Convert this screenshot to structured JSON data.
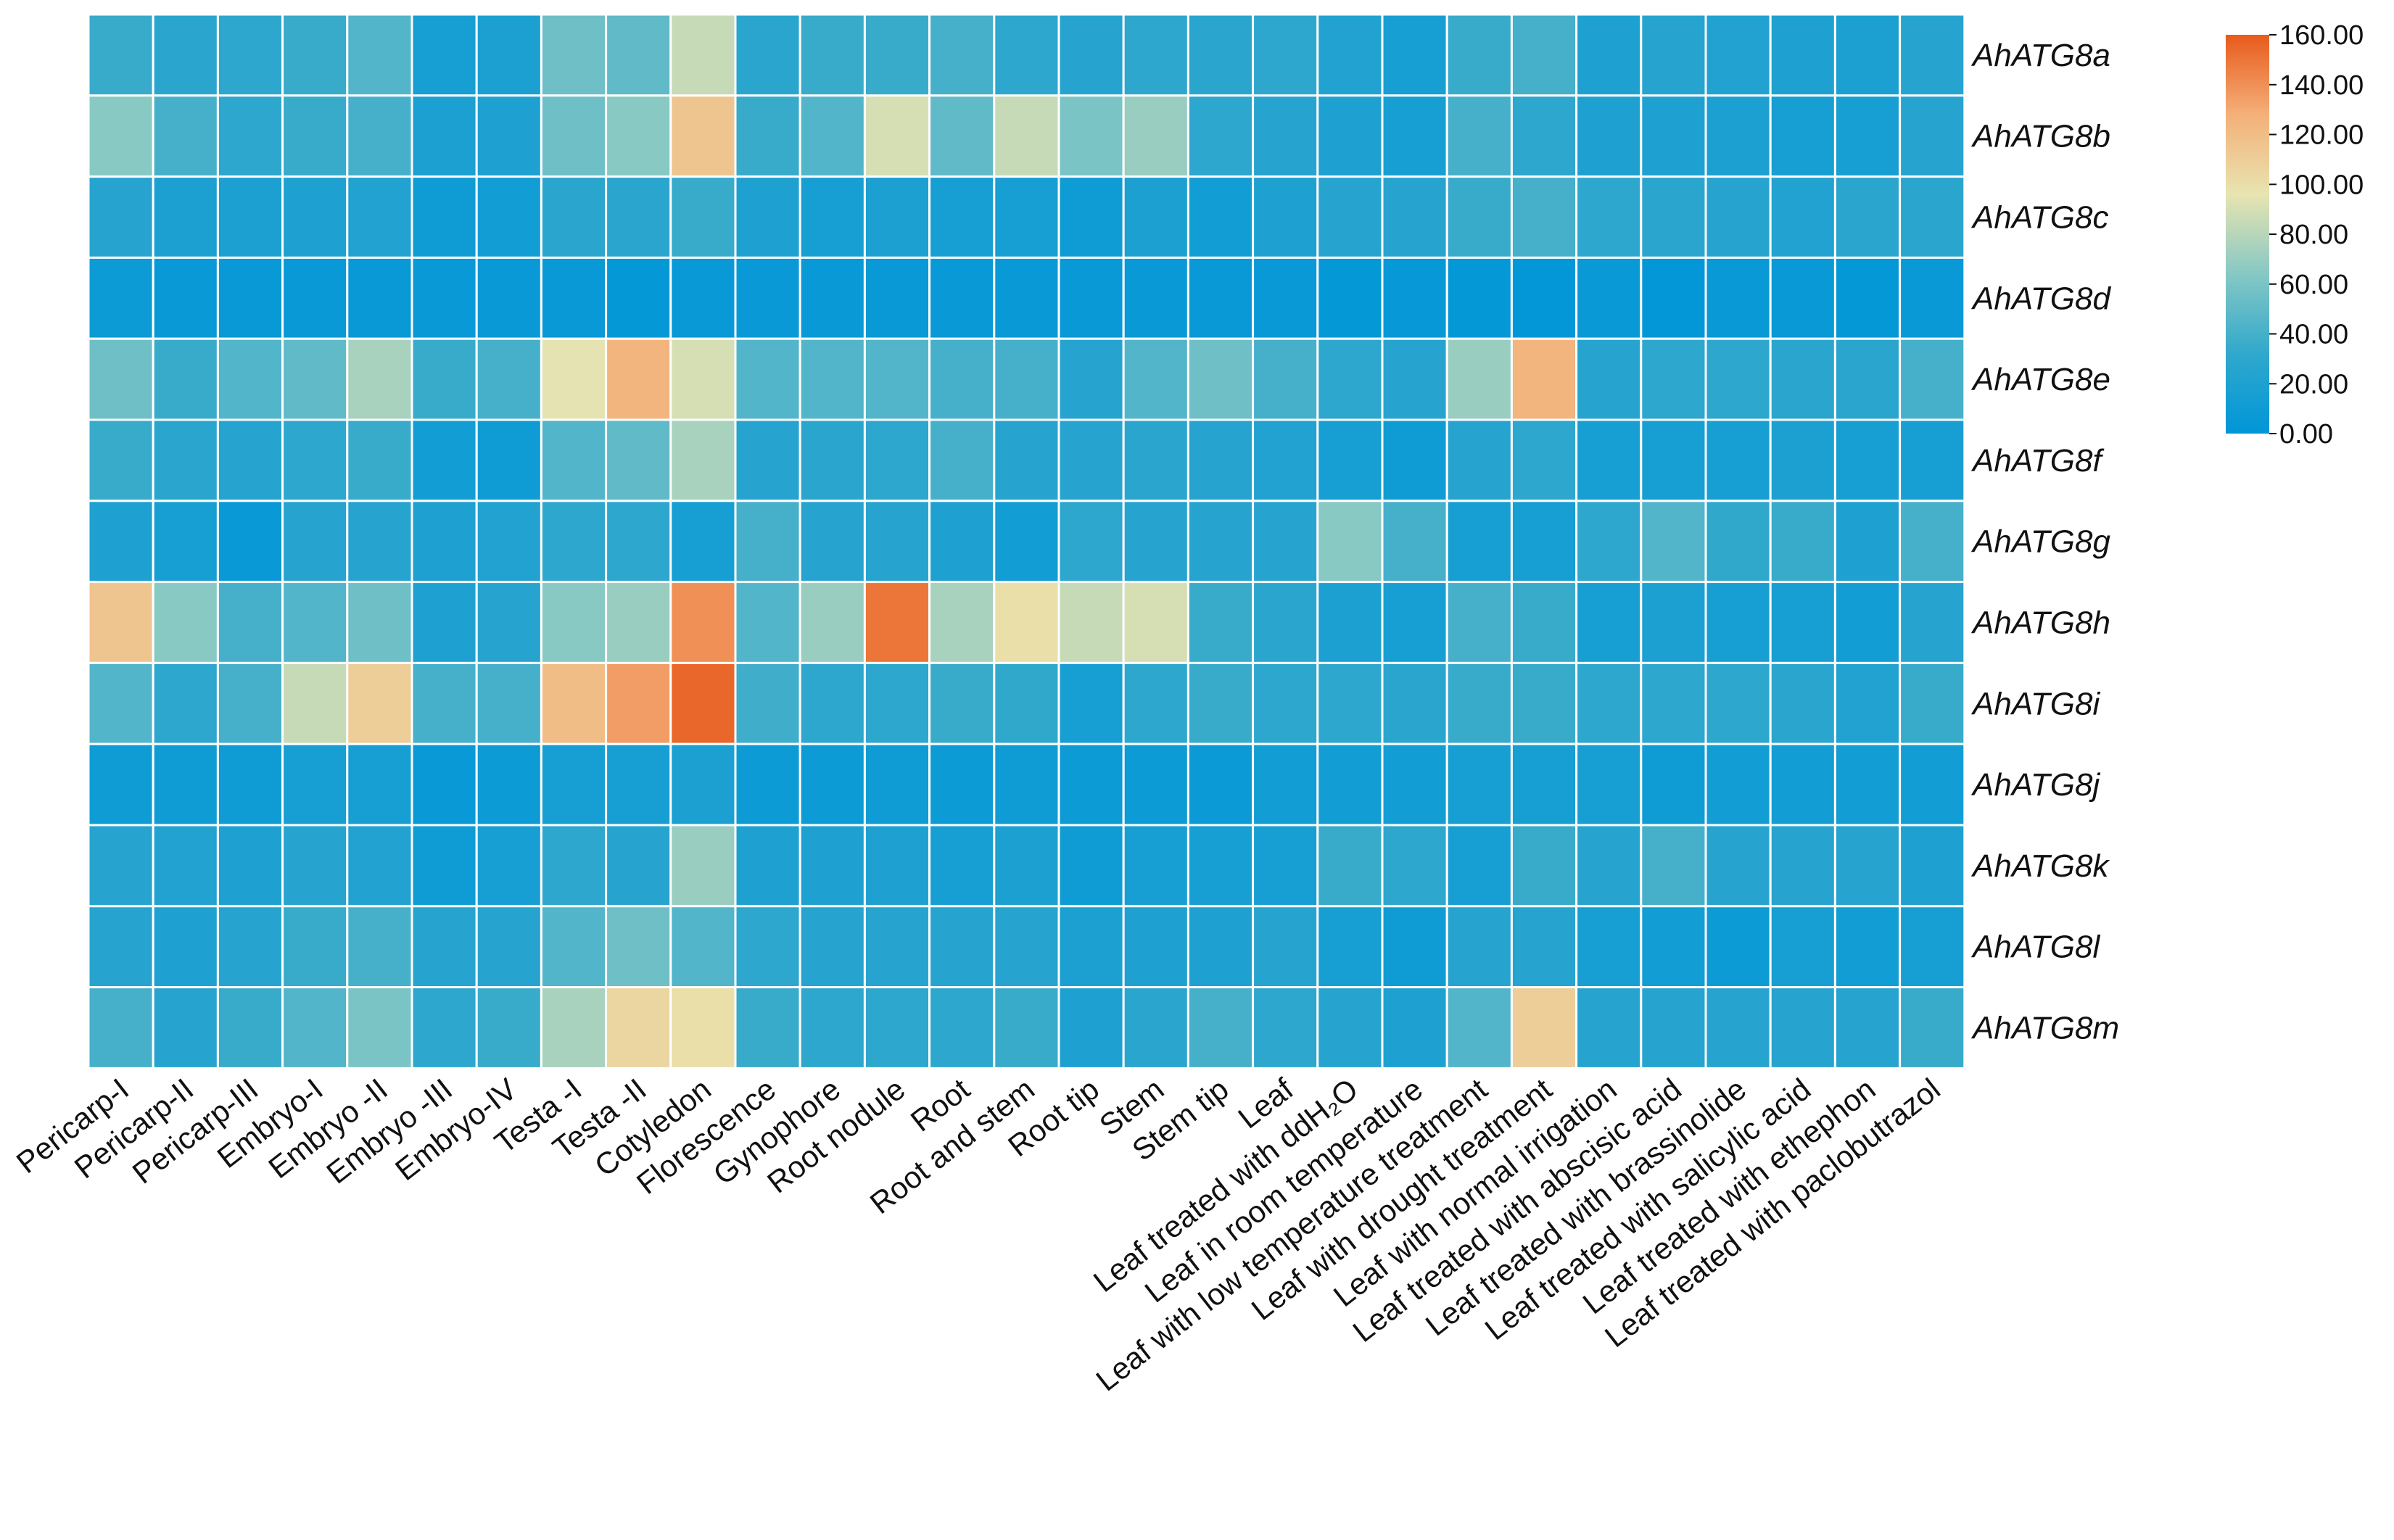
{
  "chart_data": {
    "type": "heatmap",
    "title": "",
    "rows": [
      "AhATG8a",
      "AhATG8b",
      "AhATG8c",
      "AhATG8d",
      "AhATG8e",
      "AhATG8f",
      "AhATG8g",
      "AhATG8h",
      "AhATG8i",
      "AhATG8j",
      "AhATG8k",
      "AhATG8l",
      "AhATG8m"
    ],
    "columns": [
      "Pericarp-I",
      "Pericarp-II",
      "Pericarp-III",
      "Embryo-I",
      "Embryo -II",
      "Embryo -III",
      "Embryo-IV",
      "Testa -I",
      "Testa -II",
      "Cotyledon",
      "Florescence",
      "Gynophore",
      "Root nodule",
      "Root",
      "Root and stem",
      "Root tip",
      "Stem",
      "Stem tip",
      "Leaf",
      "Leaf treated with ddH₂O",
      "Leaf in room temperature",
      "Leaf with low temperature treatment",
      "Leaf with drought treatment",
      "Leaf with normal irrigation",
      "Leaf treated with abscisic acid",
      "Leaf treated with brassinolide",
      "Leaf treated with salicylic acid",
      "Leaf treated with ethephon",
      "Leaf treated with paclobutrazol"
    ],
    "values": [
      [
        35,
        28,
        30,
        35,
        45,
        15,
        18,
        55,
        50,
        85,
        28,
        35,
        35,
        40,
        30,
        25,
        30,
        28,
        30,
        22,
        15,
        35,
        40,
        20,
        25,
        22,
        20,
        18,
        25
      ],
      [
        65,
        40,
        30,
        35,
        40,
        18,
        20,
        55,
        65,
        115,
        35,
        45,
        90,
        50,
        85,
        60,
        70,
        30,
        25,
        20,
        15,
        40,
        30,
        20,
        20,
        18,
        15,
        15,
        25
      ],
      [
        25,
        18,
        18,
        20,
        22,
        10,
        12,
        28,
        28,
        35,
        20,
        15,
        18,
        15,
        15,
        10,
        18,
        12,
        20,
        25,
        25,
        35,
        40,
        30,
        28,
        25,
        22,
        28,
        28
      ],
      [
        8,
        6,
        5,
        6,
        5,
        6,
        6,
        5,
        3,
        5,
        6,
        6,
        6,
        5,
        5,
        5,
        6,
        6,
        6,
        3,
        4,
        3,
        2,
        6,
        2,
        5,
        5,
        3,
        5
      ],
      [
        55,
        35,
        45,
        50,
        75,
        35,
        40,
        95,
        125,
        90,
        45,
        45,
        45,
        40,
        40,
        25,
        45,
        55,
        40,
        30,
        25,
        70,
        125,
        25,
        30,
        30,
        28,
        28,
        40
      ],
      [
        35,
        28,
        25,
        30,
        35,
        12,
        10,
        45,
        50,
        75,
        25,
        28,
        30,
        40,
        25,
        25,
        28,
        25,
        22,
        15,
        10,
        25,
        30,
        15,
        15,
        15,
        18,
        15,
        15
      ],
      [
        20,
        15,
        5,
        25,
        25,
        20,
        22,
        30,
        30,
        15,
        40,
        25,
        25,
        20,
        12,
        30,
        25,
        25,
        25,
        65,
        40,
        15,
        15,
        30,
        45,
        32,
        35,
        20,
        40
      ],
      [
        115,
        65,
        40,
        45,
        55,
        20,
        25,
        65,
        70,
        140,
        45,
        70,
        150,
        75,
        100,
        85,
        90,
        35,
        28,
        18,
        15,
        40,
        35,
        15,
        18,
        15,
        15,
        12,
        25
      ],
      [
        45,
        30,
        40,
        85,
        110,
        40,
        40,
        120,
        135,
        155,
        38,
        30,
        30,
        35,
        32,
        15,
        30,
        35,
        30,
        30,
        28,
        35,
        35,
        30,
        30,
        30,
        28,
        22,
        35
      ],
      [
        10,
        10,
        10,
        15,
        15,
        5,
        8,
        15,
        15,
        18,
        8,
        8,
        10,
        8,
        10,
        8,
        8,
        7,
        12,
        12,
        12,
        15,
        15,
        15,
        10,
        12,
        12,
        12,
        12
      ],
      [
        25,
        22,
        20,
        25,
        22,
        10,
        15,
        30,
        25,
        70,
        20,
        20,
        20,
        15,
        18,
        10,
        15,
        15,
        15,
        35,
        30,
        15,
        35,
        25,
        40,
        25,
        25,
        25,
        20
      ],
      [
        25,
        20,
        25,
        35,
        40,
        25,
        25,
        45,
        55,
        45,
        30,
        25,
        25,
        25,
        25,
        18,
        20,
        20,
        25,
        15,
        10,
        25,
        25,
        15,
        12,
        8,
        15,
        12,
        15
      ],
      [
        40,
        25,
        35,
        45,
        60,
        30,
        35,
        75,
        105,
        100,
        35,
        30,
        30,
        30,
        35,
        20,
        28,
        40,
        30,
        25,
        20,
        45,
        110,
        25,
        25,
        25,
        25,
        25,
        35
      ]
    ],
    "colorbar": {
      "ticks": [
        "160.00",
        "140.00",
        "120.00",
        "100.00",
        "80.00",
        "60.00",
        "40.00",
        "20.00",
        "0.00"
      ],
      "min": 0,
      "max": 160,
      "colors": [
        "#0096d8",
        "#30a8cc",
        "#86c8c4",
        "#e8e4b0",
        "#f4b079",
        "#e85a1c"
      ]
    }
  }
}
